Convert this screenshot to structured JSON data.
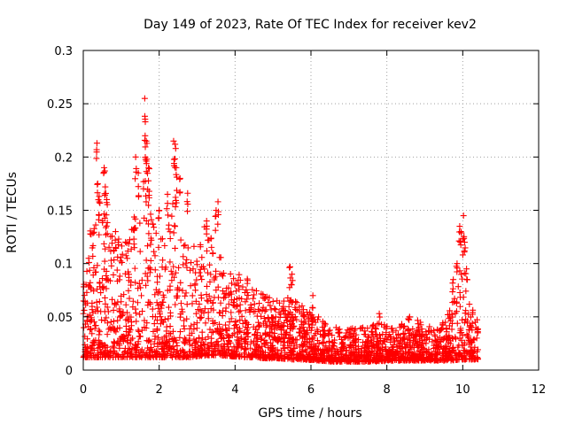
{
  "chart_data": {
    "type": "scatter",
    "title": "Day 149 of 2023, Rate Of TEC Index for receiver kev2",
    "xlabel": "GPS time / hours",
    "ylabel": "ROTI / TECUs",
    "xlim": [
      0,
      12
    ],
    "ylim": [
      0,
      0.3
    ],
    "xticks": [
      0,
      2,
      4,
      6,
      8,
      10,
      12
    ],
    "xtick_labels": [
      "0",
      "2",
      "4",
      "6",
      "8",
      "10",
      "12"
    ],
    "yticks": [
      0,
      0.05,
      0.1,
      0.15,
      0.2,
      0.25,
      0.3
    ],
    "ytick_labels": [
      "0",
      "0.05",
      "0.1",
      "0.15",
      "0.2",
      "0.25",
      "0.3"
    ],
    "grid": true,
    "marker": "+",
    "color": "#ff0000",
    "series": [
      {
        "name": "ROTI",
        "x_range": [
          0,
          10.4
        ],
        "envelope": {
          "x": [
            0,
            0.2,
            0.5,
            0.8,
            1.0,
            1.3,
            1.6,
            1.8,
            2.0,
            2.2,
            2.4,
            2.6,
            2.8,
            3.0,
            3.3,
            3.6,
            3.9,
            4.2,
            4.5,
            4.8,
            5.2,
            5.5,
            5.8,
            6.2,
            6.6,
            7.0,
            7.4,
            7.8,
            8.2,
            8.6,
            9.0,
            9.4,
            9.7,
            9.9,
            10.0,
            10.2,
            10.4
          ],
          "base": [
            0.012,
            0.012,
            0.012,
            0.012,
            0.012,
            0.012,
            0.012,
            0.012,
            0.012,
            0.012,
            0.012,
            0.012,
            0.012,
            0.013,
            0.014,
            0.014,
            0.013,
            0.012,
            0.012,
            0.011,
            0.011,
            0.01,
            0.01,
            0.009,
            0.008,
            0.008,
            0.008,
            0.008,
            0.009,
            0.009,
            0.009,
            0.009,
            0.009,
            0.01,
            0.01,
            0.01,
            0.01
          ],
          "upper": [
            0.1,
            0.14,
            0.16,
            0.13,
            0.12,
            0.15,
            0.2,
            0.15,
            0.13,
            0.12,
            0.19,
            0.13,
            0.12,
            0.13,
            0.14,
            0.11,
            0.09,
            0.09,
            0.08,
            0.07,
            0.065,
            0.07,
            0.06,
            0.05,
            0.04,
            0.04,
            0.04,
            0.045,
            0.04,
            0.05,
            0.045,
            0.04,
            0.06,
            0.09,
            0.12,
            0.06,
            0.05
          ]
        },
        "peaks": [
          {
            "x": 0.36,
            "y": 0.213
          },
          {
            "x": 0.38,
            "y": 0.175
          },
          {
            "x": 0.42,
            "y": 0.163
          },
          {
            "x": 0.55,
            "y": 0.19
          },
          {
            "x": 0.58,
            "y": 0.172
          },
          {
            "x": 0.62,
            "y": 0.16
          },
          {
            "x": 0.85,
            "y": 0.13
          },
          {
            "x": 1.38,
            "y": 0.2
          },
          {
            "x": 1.45,
            "y": 0.185
          },
          {
            "x": 1.62,
            "y": 0.255
          },
          {
            "x": 1.63,
            "y": 0.22
          },
          {
            "x": 1.66,
            "y": 0.215
          },
          {
            "x": 1.68,
            "y": 0.198
          },
          {
            "x": 1.72,
            "y": 0.19
          },
          {
            "x": 2.38,
            "y": 0.215
          },
          {
            "x": 2.42,
            "y": 0.212
          },
          {
            "x": 2.45,
            "y": 0.19
          },
          {
            "x": 2.55,
            "y": 0.18
          },
          {
            "x": 2.75,
            "y": 0.166
          },
          {
            "x": 2.22,
            "y": 0.165
          },
          {
            "x": 2.0,
            "y": 0.15
          },
          {
            "x": 3.55,
            "y": 0.158
          },
          {
            "x": 3.5,
            "y": 0.15
          },
          {
            "x": 3.25,
            "y": 0.14
          },
          {
            "x": 5.45,
            "y": 0.097
          },
          {
            "x": 5.5,
            "y": 0.09
          },
          {
            "x": 6.05,
            "y": 0.07
          },
          {
            "x": 7.8,
            "y": 0.053
          },
          {
            "x": 8.6,
            "y": 0.05
          },
          {
            "x": 9.75,
            "y": 0.085
          },
          {
            "x": 9.85,
            "y": 0.1
          },
          {
            "x": 9.92,
            "y": 0.135
          },
          {
            "x": 9.95,
            "y": 0.13
          },
          {
            "x": 10.02,
            "y": 0.145
          },
          {
            "x": 10.05,
            "y": 0.12
          },
          {
            "x": 10.1,
            "y": 0.095
          }
        ]
      }
    ]
  }
}
